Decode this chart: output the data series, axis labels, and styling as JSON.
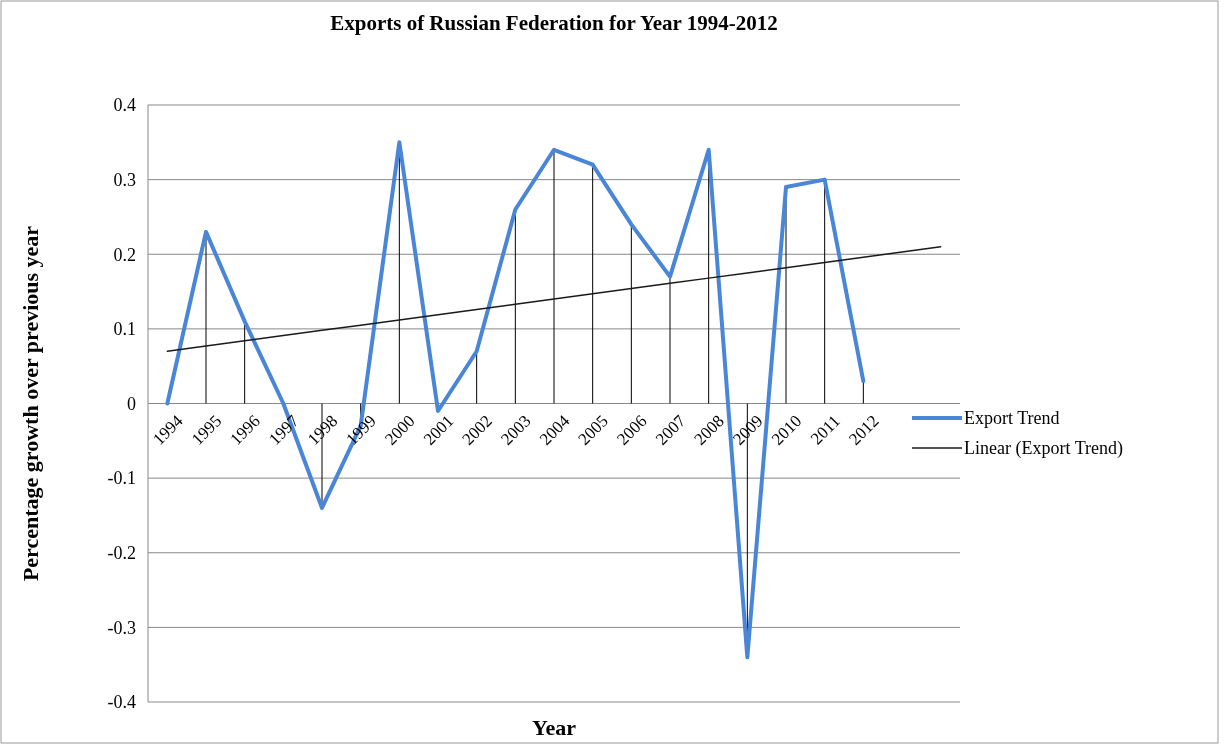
{
  "chart_data": {
    "type": "line",
    "title": "Exports of Russian Federation for Year 1994-2012",
    "xlabel": "Year",
    "ylabel": "Percentage growth over previous year",
    "categories": [
      "1994",
      "1995",
      "1996",
      "1997",
      "1998",
      "1999",
      "2000",
      "2001",
      "2002",
      "2003",
      "2004",
      "2005",
      "2006",
      "2007",
      "2008",
      "2009",
      "2010",
      "2011",
      "2012",
      null,
      null
    ],
    "series": [
      {
        "name": "Export Trend",
        "color": "#4a86d8",
        "values": [
          0,
          0.23,
          0.11,
          0.0,
          -0.14,
          -0.03,
          0.35,
          -0.01,
          0.07,
          0.26,
          0.34,
          0.32,
          0.24,
          0.17,
          0.34,
          -0.34,
          0.29,
          0.3,
          0.03,
          null,
          null
        ],
        "errors": [
          null,
          [
            0,
            0.23
          ],
          [
            0,
            0.11
          ],
          null,
          [
            -0.14,
            0
          ],
          [
            -0.03,
            0
          ],
          [
            0,
            0.35
          ],
          [
            -0.01,
            0
          ],
          [
            0,
            0.07
          ],
          [
            0,
            0.26
          ],
          [
            0,
            0.34
          ],
          [
            0,
            0.32
          ],
          [
            0,
            0.24
          ],
          [
            0,
            0.17
          ],
          [
            0,
            0.34
          ],
          [
            -0.34,
            0
          ],
          [
            0,
            0.29
          ],
          [
            0,
            0.3
          ],
          [
            0,
            0.03
          ],
          null,
          null
        ]
      },
      {
        "name": "Linear (Export Trend)",
        "color": "#1a1a1a",
        "values": [
          0.07,
          0.077,
          0.084,
          0.091,
          0.098,
          0.105,
          0.112,
          0.119,
          0.126,
          0.133,
          0.14,
          0.147,
          0.154,
          0.161,
          0.168,
          0.175,
          0.182,
          0.189,
          0.196,
          0.203,
          0.21
        ]
      }
    ],
    "ylim": [
      -0.4,
      0.4
    ],
    "yticks": [
      -0.4,
      -0.3,
      -0.2,
      -0.1,
      0,
      0.1,
      0.2,
      0.3,
      0.4
    ],
    "grid": "y",
    "legend": "right"
  }
}
